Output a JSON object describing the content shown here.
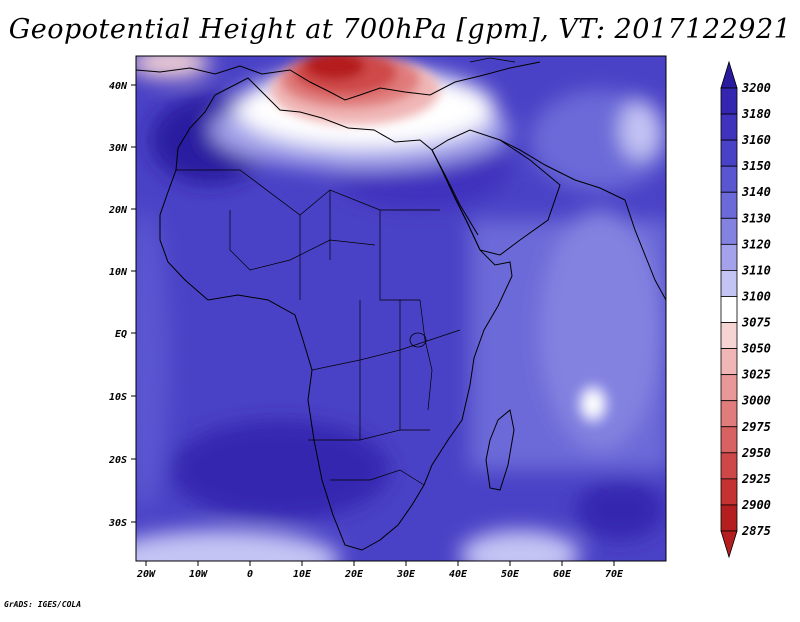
{
  "title": "Geopotential Height at 700hPa [gpm], VT: 2017122921",
  "credit": "GrADS: IGES/COLA",
  "map": {
    "lat_ticks": [
      "40N",
      "30N",
      "20N",
      "10N",
      "EQ",
      "10S",
      "20S",
      "30S"
    ],
    "lon_ticks": [
      "20W",
      "10W",
      "0",
      "10E",
      "20E",
      "30E",
      "40E",
      "50E",
      "60E",
      "70E"
    ]
  },
  "colorbar": {
    "levels": [
      "3200",
      "3180",
      "3160",
      "3150",
      "3140",
      "3130",
      "3120",
      "3110",
      "3100",
      "3075",
      "3050",
      "3025",
      "3000",
      "2975",
      "2950",
      "2925",
      "2900",
      "2875"
    ],
    "colors": [
      "#2a1aa0",
      "#3426b0",
      "#3f33bd",
      "#4a42c6",
      "#5a55d0",
      "#6c6ad8",
      "#8482e0",
      "#a3a2ea",
      "#c4c4f4",
      "#ffffff",
      "#f6d4d4",
      "#f0b6b6",
      "#e89898",
      "#e07c7c",
      "#d86262",
      "#cf4848",
      "#c53232",
      "#b51e1e"
    ]
  },
  "colors": {
    "ocean_deep": "#3c33bd",
    "land_base": "#4a42c6",
    "coast": "#000000"
  }
}
